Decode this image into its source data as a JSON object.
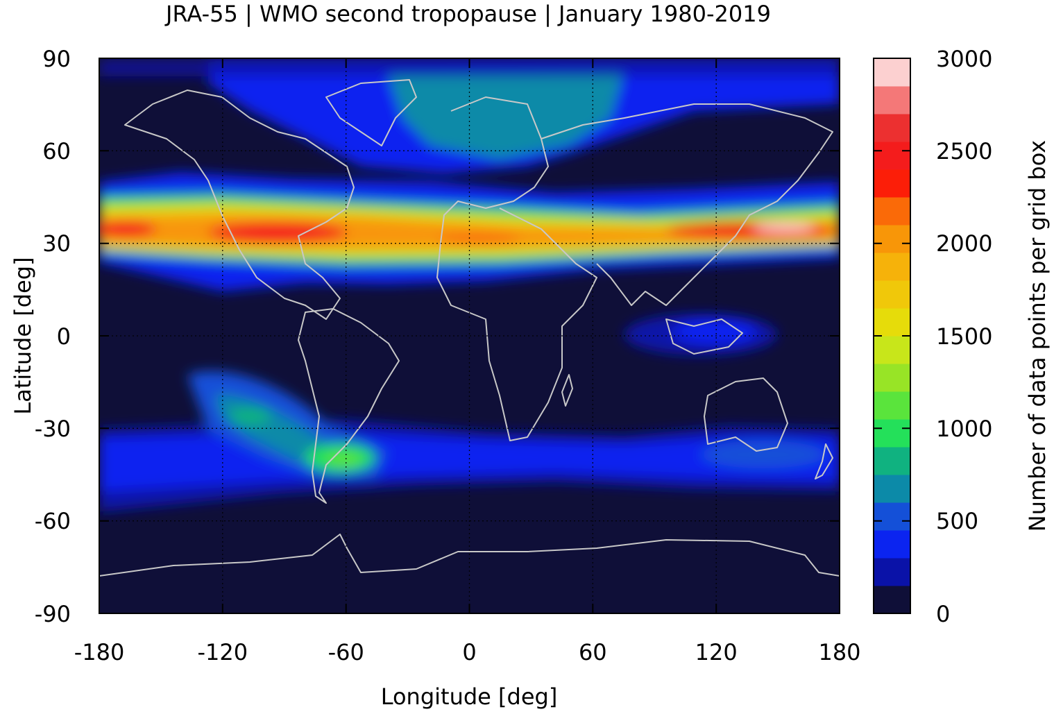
{
  "title": "JRA-55 | WMO second tropopause | January 1980-2019",
  "xlabel": "Longitude [deg]",
  "ylabel": "Latitude [deg]",
  "colorbar_label": "Number of data points per grid box",
  "x_ticks": [
    "-180",
    "-120",
    "-60",
    "0",
    "60",
    "120",
    "180"
  ],
  "y_ticks": [
    "90",
    "60",
    "30",
    "0",
    "-30",
    "-60",
    "-90"
  ],
  "colorbar_ticks": [
    "3000",
    "2500",
    "2000",
    "1500",
    "1000",
    "500",
    "0"
  ],
  "chart_data": {
    "type": "heatmap",
    "title": "JRA-55 | WMO second tropopause | January 1980-2019",
    "xlabel": "Longitude [deg]",
    "ylabel": "Latitude [deg]",
    "xlim": [
      -180,
      180
    ],
    "ylim": [
      -90,
      90
    ],
    "colorbar": {
      "label": "Number of data points per grid box",
      "range": [
        0,
        3000
      ],
      "step": 150,
      "colors": [
        "#0f0f38",
        "#0a12a8",
        "#0b24f0",
        "#1450d8",
        "#0c8aa8",
        "#10b280",
        "#24e05a",
        "#5ae43c",
        "#98e426",
        "#c8e61a",
        "#e6dc0a",
        "#f0c80a",
        "#f6b20a",
        "#f89608",
        "#fa6a08",
        "#fc1e08",
        "#f41c1c",
        "#ec3030",
        "#f47878",
        "#fcd0d0"
      ]
    },
    "features": {
      "northern_band": {
        "center_lat": 30,
        "lat_range": [
          25,
          40
        ],
        "peak_longitudes": [
          -170,
          -100,
          160
        ],
        "peak_value": 2800
      },
      "southern_band": {
        "center_lat": -40,
        "lat_range": [
          -55,
          -30
        ],
        "peak_value": 1000
      },
      "south_pacific_plume": {
        "lon_range": [
          -125,
          -60
        ],
        "lat_range": [
          -20,
          -40
        ],
        "peak_value": 900
      },
      "maritime_continent_patch": {
        "lon": 120,
        "lat": 0,
        "value": 350
      },
      "north_atlantic_arctic": {
        "lon_range": [
          -60,
          60
        ],
        "lat_range": [
          60,
          85
        ],
        "value": 600
      }
    },
    "overlays": [
      "coastlines",
      "dotted grid lines at 30-degree intervals"
    ]
  }
}
